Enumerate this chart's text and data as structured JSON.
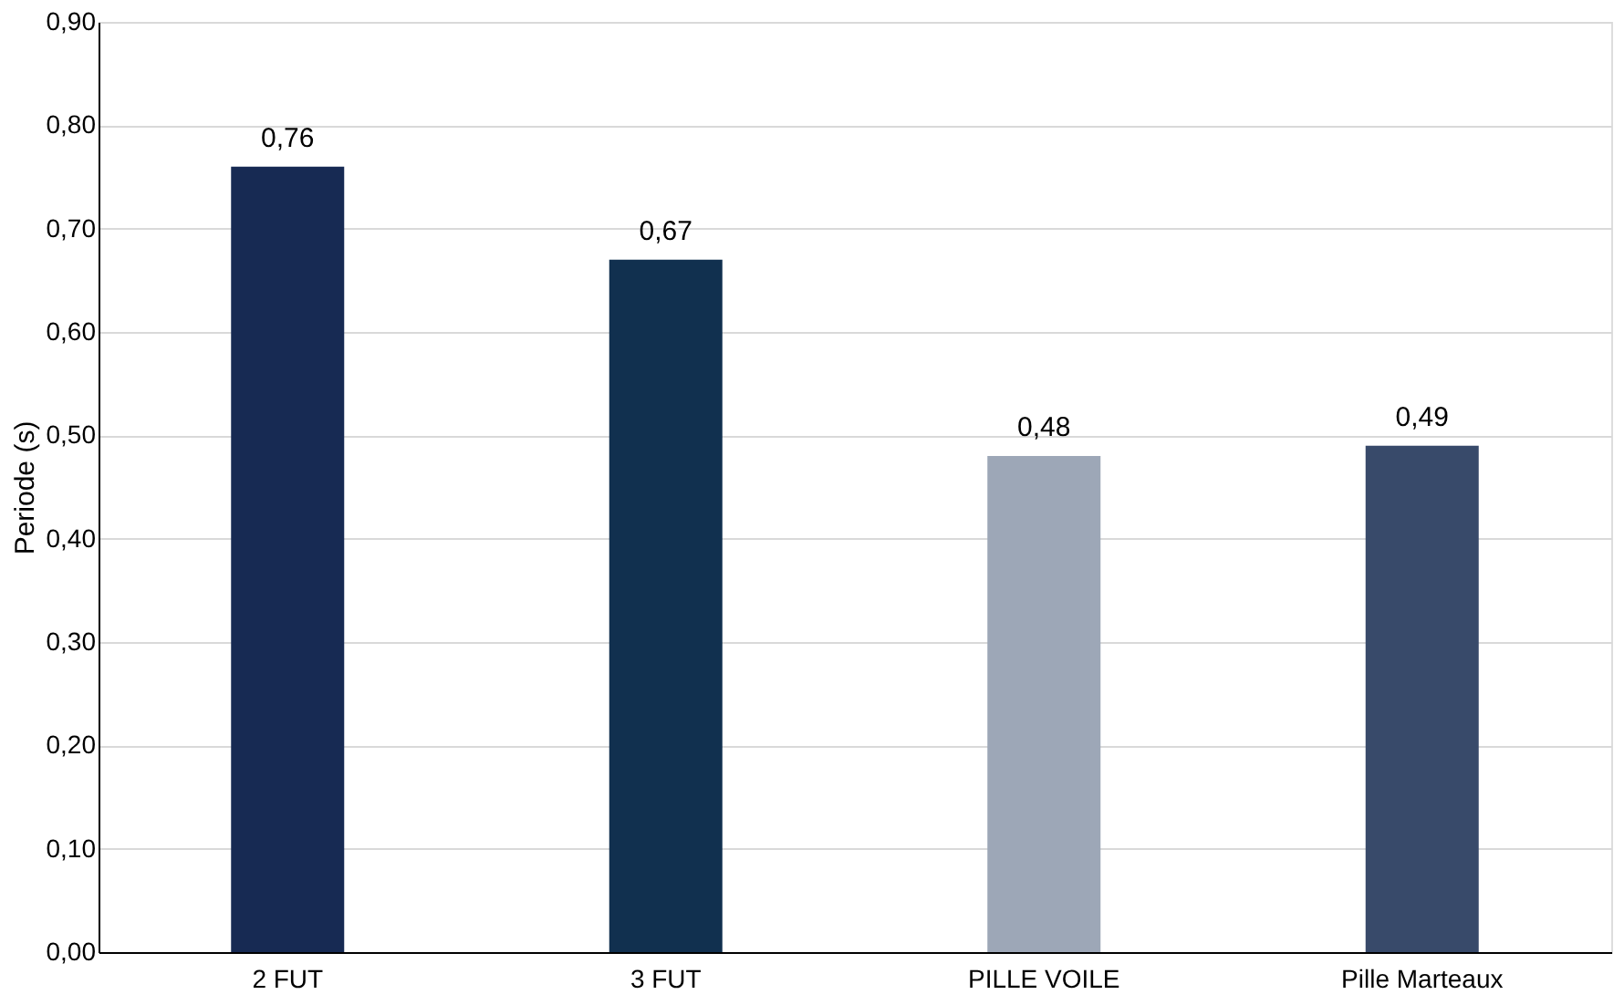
{
  "chart_data": {
    "type": "bar",
    "ylabel": "Periode (s)",
    "categories": [
      "2 FUT",
      "3 FUT",
      "PILLE VOILE",
      "Pille Marteaux"
    ],
    "values": [
      0.76,
      0.67,
      0.48,
      0.49
    ],
    "colors": [
      "#172a53",
      "#11304f",
      "#9da7b7",
      "#384a6a"
    ],
    "value_labels": [
      "0,76",
      "0,67",
      "0,48",
      "0,49"
    ],
    "ylim": [
      0,
      0.9
    ],
    "yticks": [
      {
        "value": 0,
        "label": "0,00"
      },
      {
        "value": 0.1,
        "label": "0,10"
      },
      {
        "value": 0.2,
        "label": "0,20"
      },
      {
        "value": 0.3,
        "label": "0,30"
      },
      {
        "value": 0.4,
        "label": "0,40"
      },
      {
        "value": 0.5,
        "label": "0,50"
      },
      {
        "value": 0.6,
        "label": "0,60"
      },
      {
        "value": 0.7,
        "label": "0,70"
      },
      {
        "value": 0.8,
        "label": "0,80"
      },
      {
        "value": 0.9,
        "label": "0,90"
      }
    ],
    "grid": "y"
  }
}
